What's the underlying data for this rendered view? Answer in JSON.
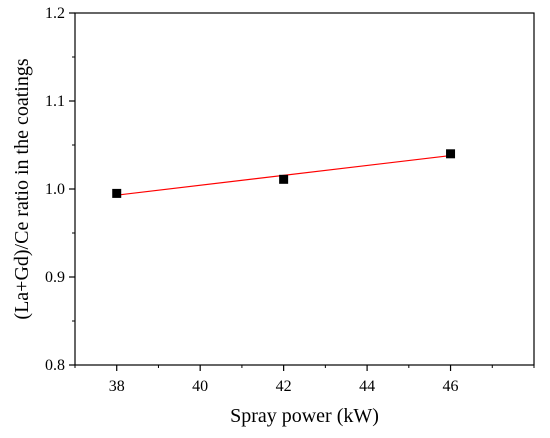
{
  "chart_data": {
    "type": "scatter",
    "xlabel": "Spray power (kW)",
    "ylabel": "(La+Gd)/Ce ratio in the coatings",
    "xlim": [
      37,
      48
    ],
    "ylim": [
      0.8,
      1.2
    ],
    "x_ticks": [
      38,
      40,
      42,
      44,
      46
    ],
    "y_ticks": [
      0.8,
      0.9,
      1.0,
      1.1,
      1.2
    ],
    "x_tick_labels": [
      "38",
      "40",
      "42",
      "44",
      "46"
    ],
    "y_tick_labels": [
      "0.8",
      "0.9",
      "1.0",
      "1.1",
      "1.2"
    ],
    "grid": false,
    "series": [
      {
        "x": [
          38,
          42,
          46
        ],
        "y": [
          0.995,
          1.011,
          1.04
        ],
        "marker": "square",
        "color": "#000000"
      }
    ],
    "fit_line": {
      "x": [
        38,
        46
      ],
      "y": [
        0.993,
        1.038
      ],
      "color": "#ff0000"
    }
  }
}
